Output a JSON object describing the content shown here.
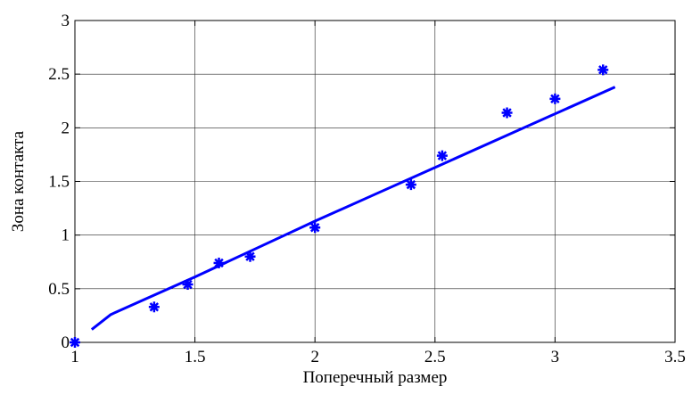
{
  "chart_data": {
    "type": "scatter",
    "title": "",
    "xlabel": "Поперечный размер",
    "ylabel": "Зона контакта",
    "xlim": [
      1,
      3.5
    ],
    "ylim": [
      0,
      3
    ],
    "grid": true,
    "x_ticks": [
      "1",
      "1.5",
      "2",
      "2.5",
      "3",
      "3.5"
    ],
    "y_ticks": [
      "0",
      "0.5",
      "1",
      "1.5",
      "2",
      "2.5",
      "3"
    ],
    "x_tick_values": [
      1,
      1.5,
      2,
      2.5,
      3,
      3.5
    ],
    "y_tick_values": [
      0,
      0.5,
      1,
      1.5,
      2,
      2.5,
      3
    ],
    "series": [
      {
        "kind": "scatter",
        "marker": "asterisk",
        "color": "#0000ff",
        "x": [
          1.0,
          1.33,
          1.47,
          1.6,
          1.73,
          2.0,
          2.4,
          2.53,
          2.8,
          3.0,
          3.2
        ],
        "y": [
          0.0,
          0.33,
          0.54,
          0.74,
          0.8,
          1.07,
          1.47,
          1.74,
          2.14,
          2.27,
          2.54
        ]
      },
      {
        "kind": "line",
        "color": "#0000ff",
        "x": [
          1.07,
          1.15,
          1.3,
          1.5,
          1.75,
          2.0,
          2.25,
          2.5,
          2.75,
          3.0,
          3.25
        ],
        "y": [
          0.12,
          0.26,
          0.41,
          0.61,
          0.87,
          1.13,
          1.38,
          1.63,
          1.88,
          2.13,
          2.38
        ]
      }
    ]
  }
}
